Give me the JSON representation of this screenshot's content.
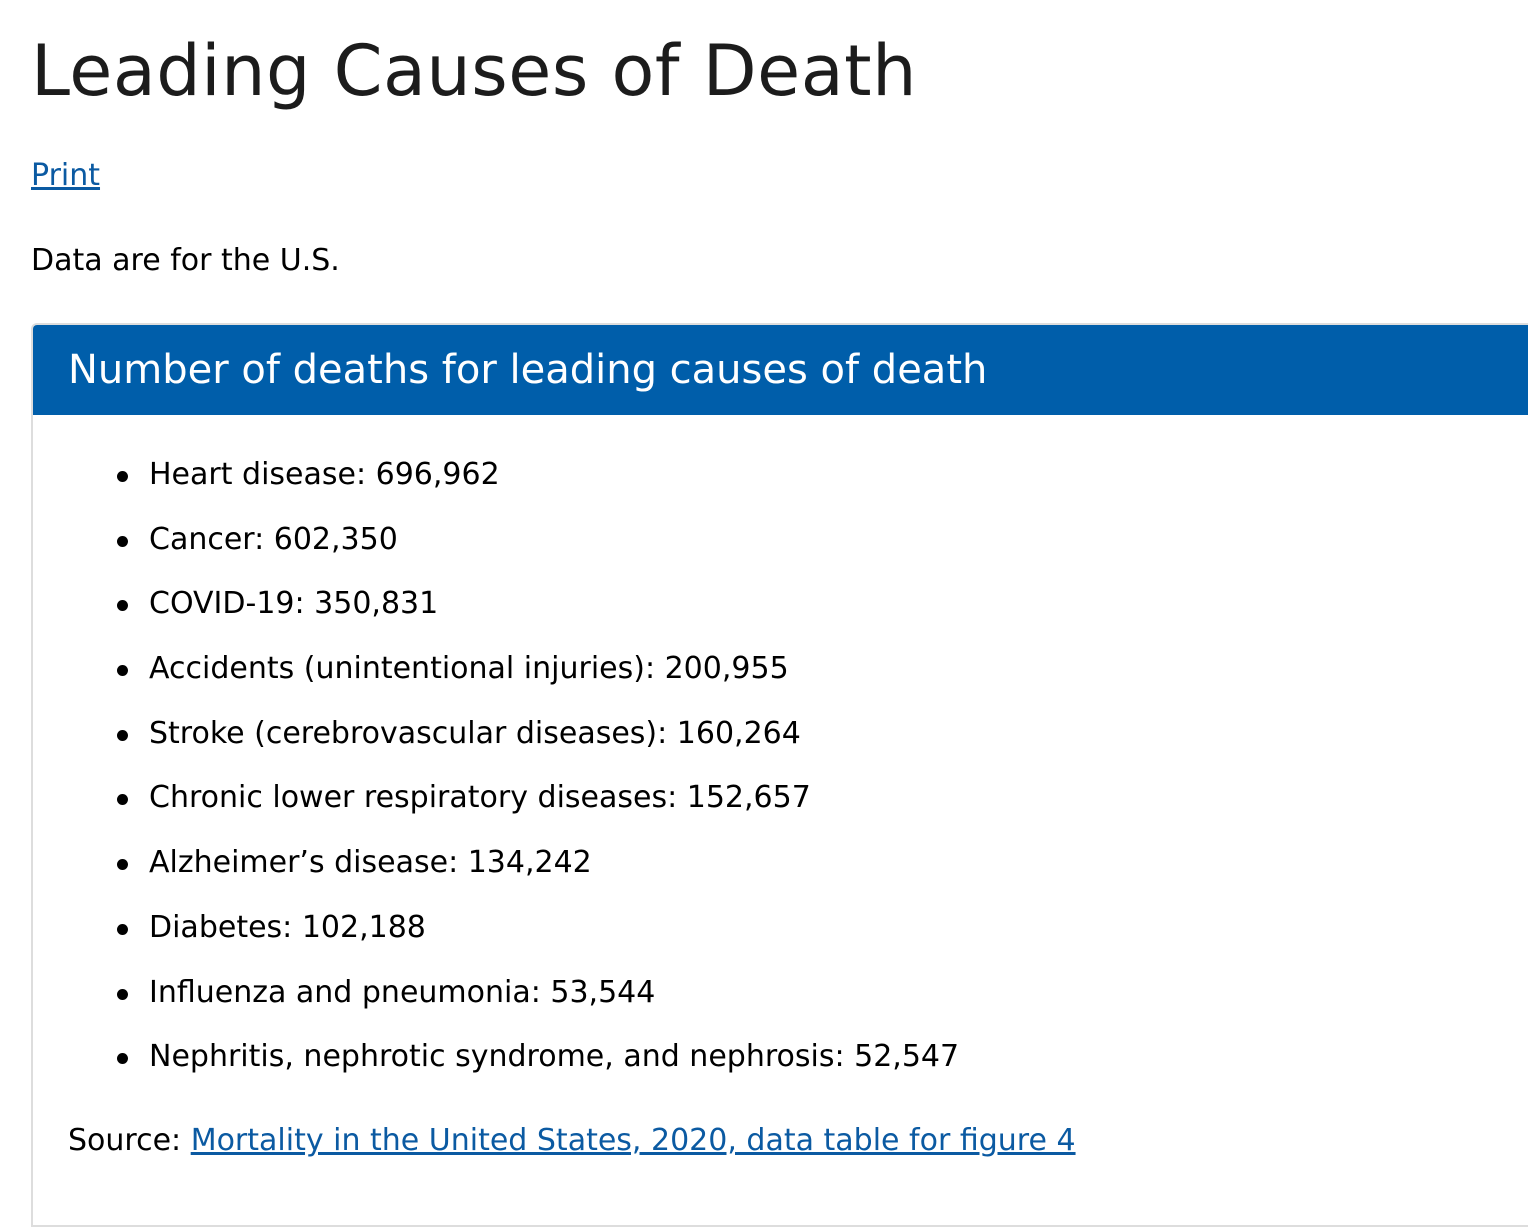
{
  "title": "Leading Causes of Death",
  "print_label": "Print",
  "note": "Data are for the U.S.",
  "card": {
    "heading": "Number of deaths for leading causes of death",
    "header_color": "#005eaa",
    "items": [
      "Heart disease: 696,962",
      "Cancer: 602,350",
      "COVID-19: 350,831",
      "Accidents (unintentional injuries): 200,955",
      "Stroke (cerebrovascular diseases): 160,264",
      "Chronic lower respiratory diseases: 152,657",
      "Alzheimer’s disease: 134,242",
      "Diabetes: 102,188",
      "Influenza and pneumonia: 53,544",
      "Nephritis, nephrotic syndrome, and nephrosis: 52,547"
    ],
    "source_label": "Source: ",
    "source_link": "Mortality in the United States, 2020, data table for figure 4"
  }
}
